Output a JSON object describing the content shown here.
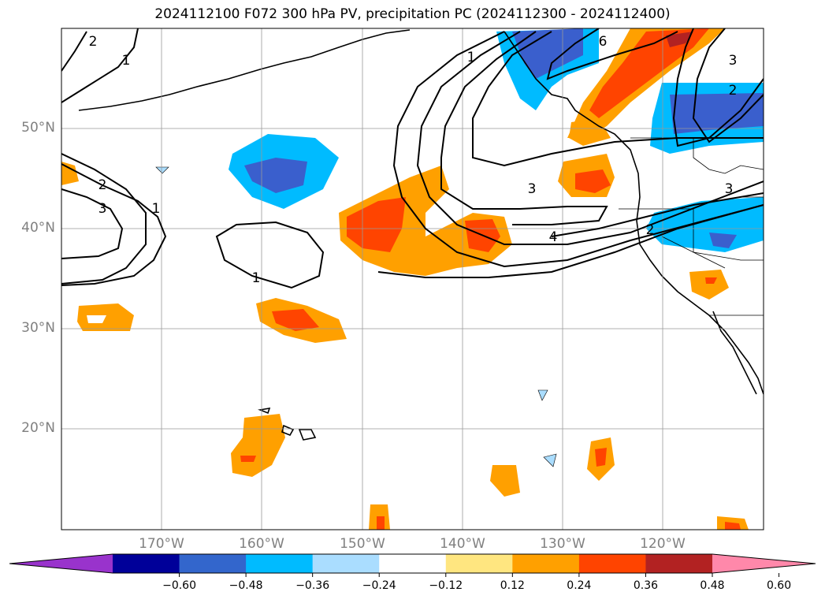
{
  "title": "2024112100 F072 300 hPa PV, precipitation PC (2024112300 - 2024112400)",
  "lat_labels": [
    "50°N",
    "40°N",
    "30°N",
    "20°N"
  ],
  "lon_labels": [
    "170°W",
    "160°W",
    "150°W",
    "140°W",
    "130°W",
    "120°W"
  ],
  "colorbar": {
    "ticks": [
      "−0.60",
      "−0.48",
      "−0.36",
      "−0.24",
      "−0.12",
      "0.12",
      "0.24",
      "0.36",
      "0.48",
      "0.60"
    ],
    "colors": [
      "#9933cc",
      "#000099",
      "#3366cc",
      "#00bbff",
      "#aaddff",
      "#ffffff",
      "#ffe680",
      "#ffa000",
      "#ff4400",
      "#b22222",
      "#ff88aa"
    ]
  },
  "contour_labels": [
    "2",
    "1",
    "2",
    "3",
    "1",
    "1",
    "1",
    "6",
    "3",
    "2",
    "3",
    "3",
    "4",
    "2"
  ],
  "colors": {
    "neg_dark": "#3a5fcd",
    "neg_mid": "#00bbff",
    "neg_light": "#aaddff",
    "pos_light": "#ffe680",
    "pos_mid": "#ffa000",
    "pos_dark": "#ff4400",
    "pos_darker": "#b22222"
  }
}
